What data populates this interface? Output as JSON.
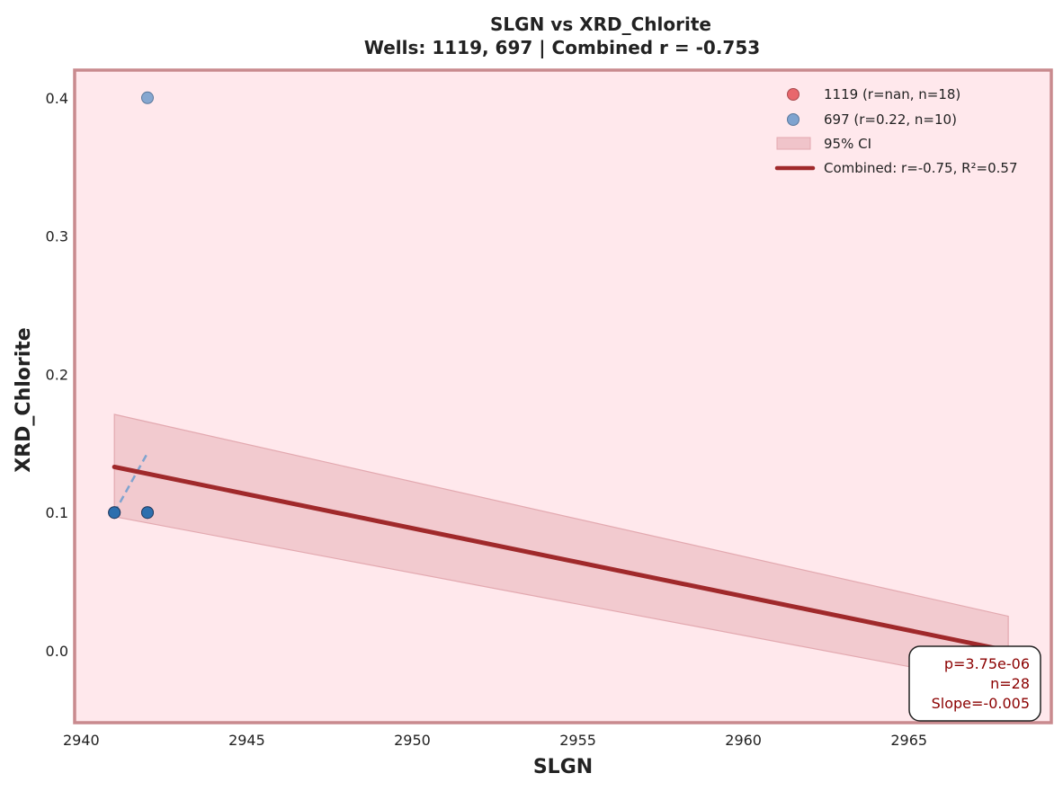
{
  "chart_data": {
    "type": "scatter",
    "title": "SLGN vs XRD_Chlorite",
    "subtitle": "Wells: 1119, 697 | Combined r = -0.753",
    "xlabel": "SLGN",
    "ylabel": "XRD_Chlorite",
    "xlim": [
      2939.8,
      2969.3
    ],
    "ylim": [
      -0.052,
      0.42
    ],
    "xticks": [
      2940,
      2945,
      2950,
      2955,
      2960,
      2965
    ],
    "yticks": [
      0.0,
      0.1,
      0.2,
      0.3,
      0.4
    ],
    "grid": false,
    "legend_position": "top-right",
    "colors": {
      "plot_bg": "#ffe8ec",
      "frame": "#c98a8e",
      "series_1119": "#e8676c",
      "series_697": "#7fa3cf",
      "overlap_point": "#2e6fae",
      "fit_line": "#a0292b",
      "ci_band": "#f0c4ca",
      "stats_text": "#8b0000"
    },
    "series": [
      {
        "name": "1119 (r=nan, n=18)",
        "points": [
          {
            "x": 2941,
            "y": 0.1
          },
          {
            "x": 2942,
            "y": 0.1
          }
        ]
      },
      {
        "name": "697 (r=0.22, n=10)",
        "points": [
          {
            "x": 2941,
            "y": 0.1
          },
          {
            "x": 2942,
            "y": 0.1
          },
          {
            "x": 2942,
            "y": 0.4
          }
        ],
        "fit": {
          "x": [
            2941,
            2942
          ],
          "y": [
            0.1,
            0.143
          ]
        }
      }
    ],
    "ci_label": "95% CI",
    "ci_band": {
      "x": [
        2941,
        2968
      ],
      "upper": [
        0.171,
        0.025
      ],
      "lower": [
        0.097,
        -0.025
      ]
    },
    "combined_fit": {
      "label": "Combined: r=-0.75, R²=0.57",
      "x": [
        2941,
        2968
      ],
      "y": [
        0.133,
        0.0
      ]
    },
    "stats": {
      "p": "p=3.75e-06",
      "n": "n=28",
      "slope": "Slope=-0.005"
    }
  }
}
